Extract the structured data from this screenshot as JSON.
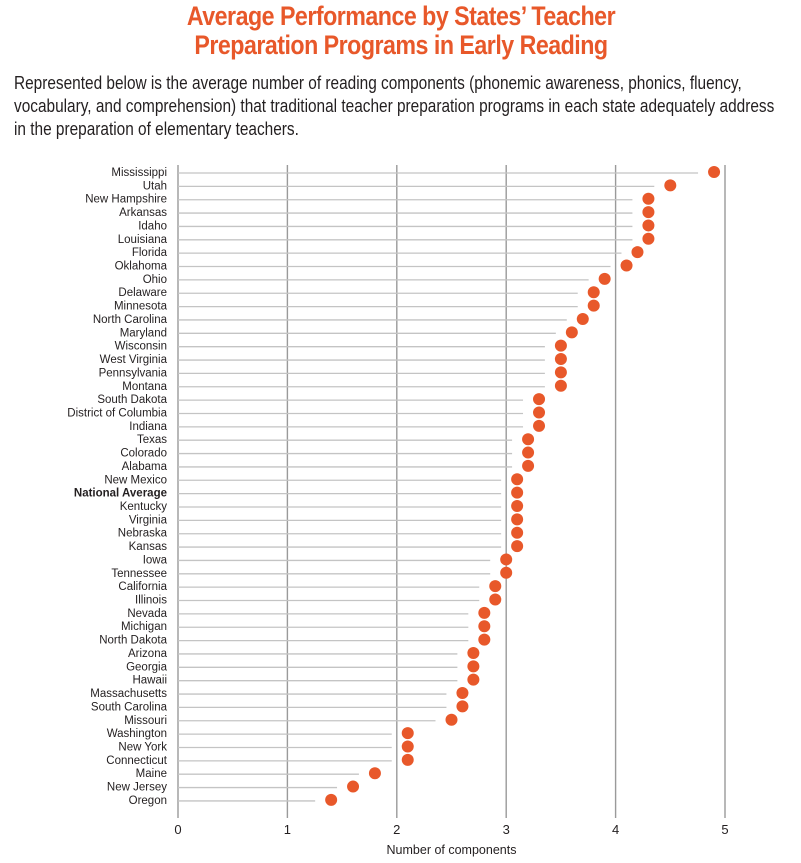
{
  "header": {
    "title_lines": [
      "Average Performance by States’ Teacher",
      "Preparation Programs in Early Reading"
    ],
    "description_lines": [
      "Represented below is the average number of reading components (phonemic awareness, phonics, fluency,",
      "vocabulary, and comprehension) that traditional teacher preparation programs in each state adequately address",
      "in the preparation of elementary teachers."
    ]
  },
  "colors": {
    "accent": "#e8582a",
    "gridline": "#9a9a9a",
    "row_line": "#c4c4c4",
    "text": "#231f20"
  },
  "chart_data": {
    "type": "scatter",
    "title": "Average Performance by States’ Teacher Preparation Programs in Early Reading",
    "xlabel": "Number of components",
    "ylabel": "",
    "xlim": [
      0,
      5
    ],
    "xticks": [
      0,
      1,
      2,
      3,
      4,
      5
    ],
    "grid": true,
    "legend": "none",
    "highlight": "National Average",
    "categories": [
      "Mississippi",
      "Utah",
      "New Hampshire",
      "Arkansas",
      "Idaho",
      "Louisiana",
      "Florida",
      "Oklahoma",
      "Ohio",
      "Delaware",
      "Minnesota",
      "North Carolina",
      "Maryland",
      "Wisconsin",
      "West Virginia",
      "Pennsylvania",
      "Montana",
      "South Dakota",
      "District of Columbia",
      "Indiana",
      "Texas",
      "Colorado",
      "Alabama",
      "New Mexico",
      "National Average",
      "Kentucky",
      "Virginia",
      "Nebraska",
      "Kansas",
      "Iowa",
      "Tennessee",
      "California",
      "Illinois",
      "Nevada",
      "Michigan",
      "North Dakota",
      "Arizona",
      "Georgia",
      "Hawaii",
      "Massachusetts",
      "South Carolina",
      "Missouri",
      "Washington",
      "New York",
      "Connecticut",
      "Maine",
      "New Jersey",
      "Oregon"
    ],
    "values": [
      4.9,
      4.5,
      4.3,
      4.3,
      4.3,
      4.3,
      4.2,
      4.1,
      3.9,
      3.8,
      3.8,
      3.7,
      3.6,
      3.5,
      3.5,
      3.5,
      3.5,
      3.3,
      3.3,
      3.3,
      3.2,
      3.2,
      3.2,
      3.1,
      3.1,
      3.1,
      3.1,
      3.1,
      3.1,
      3.0,
      3.0,
      2.9,
      2.9,
      2.8,
      2.8,
      2.8,
      2.7,
      2.7,
      2.7,
      2.6,
      2.6,
      2.5,
      2.1,
      2.1,
      2.1,
      1.8,
      1.6,
      1.4
    ]
  }
}
